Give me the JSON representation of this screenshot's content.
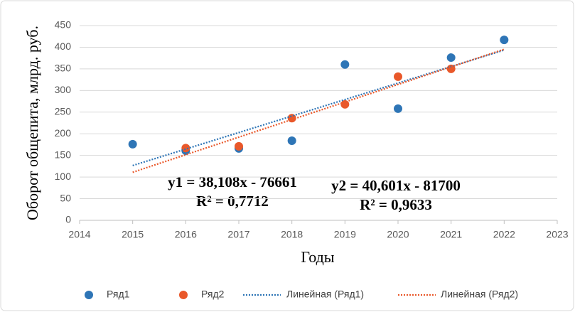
{
  "chart_data": {
    "type": "scatter",
    "xlabel": "Годы",
    "ylabel": "Оборот общепита, млрд. руб.",
    "xlim": [
      2014,
      2023
    ],
    "xticks": [
      2014,
      2015,
      2016,
      2017,
      2018,
      2019,
      2020,
      2021,
      2022,
      2023
    ],
    "ylim": [
      0,
      450
    ],
    "yticks": [
      0,
      50,
      100,
      150,
      200,
      250,
      300,
      350,
      400,
      450
    ],
    "grid": true,
    "legend": "bottom",
    "series": [
      {
        "name": "Ряд1",
        "color": "#2e75b6",
        "x": [
          2015,
          2016,
          2017,
          2018,
          2019,
          2020,
          2021,
          2022
        ],
        "values": [
          176,
          161,
          166,
          184,
          360,
          258,
          376,
          417
        ]
      },
      {
        "name": "Ряд2",
        "color": "#e9582a",
        "x": [
          2016,
          2017,
          2018,
          2019,
          2020,
          2021
        ],
        "values": [
          167,
          171,
          236,
          268,
          332,
          350
        ]
      },
      {
        "name": "Линейная (Ряд1)",
        "color": "#2e75b6",
        "trendline": true,
        "x": [
          2015,
          2022
        ],
        "values": [
          126.6,
          393.4
        ]
      },
      {
        "name": "Линейная (Ряд2)",
        "color": "#e9582a",
        "trendline": true,
        "x": [
          2015,
          2022
        ],
        "values": [
          111,
          395.2
        ]
      }
    ],
    "annotations": [
      "y1 = 38,108x - 76661",
      "R² = 0,7712",
      "y2 = 40,601x - 81700",
      "R² = 0,9633"
    ]
  }
}
